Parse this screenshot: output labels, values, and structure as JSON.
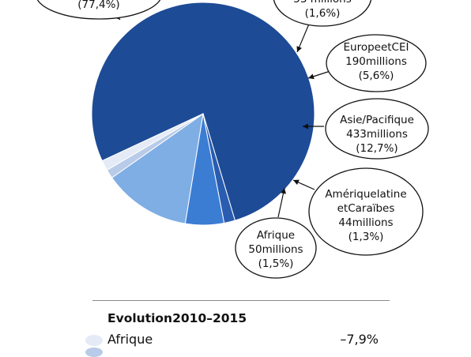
{
  "chart_data": {
    "type": "pie",
    "series": [
      {
        "values": [
          77.4,
          1.6,
          5.6,
          12.7,
          1.3,
          1.5
        ]
      }
    ],
    "slices": [
      {
        "key": "main",
        "color": "#1d4b96",
        "lines": [
          "(77,4%)"
        ]
      },
      {
        "key": "slice2",
        "color": "#2a5cb0",
        "lines": [
          "53 millions",
          "(1,6%)"
        ]
      },
      {
        "key": "europe",
        "color": "#3c7dd4",
        "lines": [
          "EuropeetCEI",
          "190millions",
          "(5,6%)"
        ]
      },
      {
        "key": "asia",
        "color": "#7eaee3",
        "lines": [
          "Asie/Pacifique",
          "433millions",
          "(12,7%)"
        ]
      },
      {
        "key": "latam",
        "color": "#b8cbe8",
        "lines": [
          "Amériquelatine",
          "etCaraïbes",
          "44millions",
          "(1,3%)"
        ]
      },
      {
        "key": "africa",
        "color": "#e4ebf6",
        "lines": [
          "Afrique",
          "50millions",
          "(1,5%)"
        ]
      }
    ]
  },
  "evolution": {
    "title": "Evolution2010–2015",
    "rows": [
      {
        "name": "Afrique",
        "value": "–7,9%",
        "color": "#e4ebf6"
      }
    ]
  }
}
